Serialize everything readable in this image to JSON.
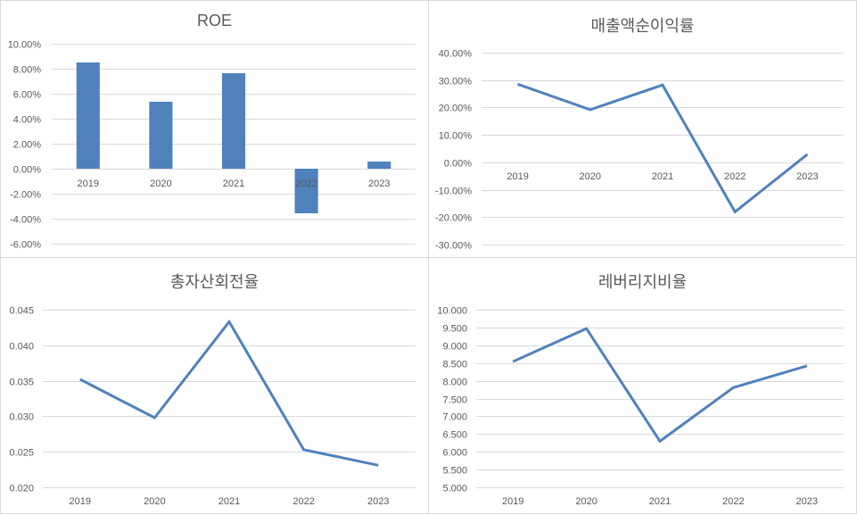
{
  "chart_data": [
    {
      "id": "roe",
      "type": "bar",
      "title": "ROE",
      "categories": [
        "2019",
        "2020",
        "2021",
        "2022",
        "2023"
      ],
      "values": [
        0.085,
        0.0536,
        0.0764,
        -0.0357,
        0.0057
      ],
      "xlabel": "",
      "ylabel": "",
      "ylim": [
        -0.06,
        0.1
      ],
      "yticks": [
        0.1,
        0.08,
        0.06,
        0.04,
        0.02,
        0.0,
        -0.02,
        -0.04,
        -0.06
      ],
      "ytick_labels": [
        "10.00%",
        "8.00%",
        "6.00%",
        "4.00%",
        "2.00%",
        "0.00%",
        "-2.00%",
        "-4.00%",
        "-6.00%"
      ],
      "grid": true,
      "legend": "none",
      "color": "#4f81bd"
    },
    {
      "id": "net-profit-margin",
      "type": "line",
      "title": "매출액순이익률",
      "categories": [
        "2019",
        "2020",
        "2021",
        "2022",
        "2023"
      ],
      "values": [
        0.285,
        0.192,
        0.282,
        -0.181,
        0.029
      ],
      "xlabel": "",
      "ylabel": "",
      "ylim": [
        -0.3,
        0.4
      ],
      "yticks": [
        0.4,
        0.3,
        0.2,
        0.1,
        0.0,
        -0.1,
        -0.2,
        -0.3
      ],
      "ytick_labels": [
        "40.00%",
        "30.00%",
        "20.00%",
        "10.00%",
        "0.00%",
        "-10.00%",
        "-20.00%",
        "-30.00%"
      ],
      "grid": true,
      "legend": "none",
      "color": "#4f81bd"
    },
    {
      "id": "total-asset-turnover",
      "type": "line",
      "title": "총자산회전율",
      "categories": [
        "2019",
        "2020",
        "2021",
        "2022",
        "2023"
      ],
      "values": [
        0.0352,
        0.0298,
        0.0433,
        0.0253,
        0.0231
      ],
      "xlabel": "",
      "ylabel": "",
      "ylim": [
        0.02,
        0.045
      ],
      "yticks": [
        0.045,
        0.04,
        0.035,
        0.03,
        0.025,
        0.02
      ],
      "ytick_labels": [
        "0.045",
        "0.040",
        "0.035",
        "0.030",
        "0.025",
        "0.020"
      ],
      "grid": true,
      "legend": "none",
      "color": "#4f81bd"
    },
    {
      "id": "leverage-ratio",
      "type": "line",
      "title": "레버리지비율",
      "categories": [
        "2019",
        "2020",
        "2021",
        "2022",
        "2023"
      ],
      "values": [
        8.54,
        9.47,
        6.3,
        7.81,
        8.42
      ],
      "xlabel": "",
      "ylabel": "",
      "ylim": [
        5.0,
        10.0
      ],
      "yticks": [
        10.0,
        9.5,
        9.0,
        8.5,
        8.0,
        7.5,
        7.0,
        6.5,
        6.0,
        5.5,
        5.0
      ],
      "ytick_labels": [
        "10.000",
        "9.500",
        "9.000",
        "8.500",
        "8.000",
        "7.500",
        "7.000",
        "6.500",
        "6.000",
        "5.500",
        "5.000"
      ],
      "grid": true,
      "legend": "none",
      "color": "#4f81bd"
    }
  ]
}
